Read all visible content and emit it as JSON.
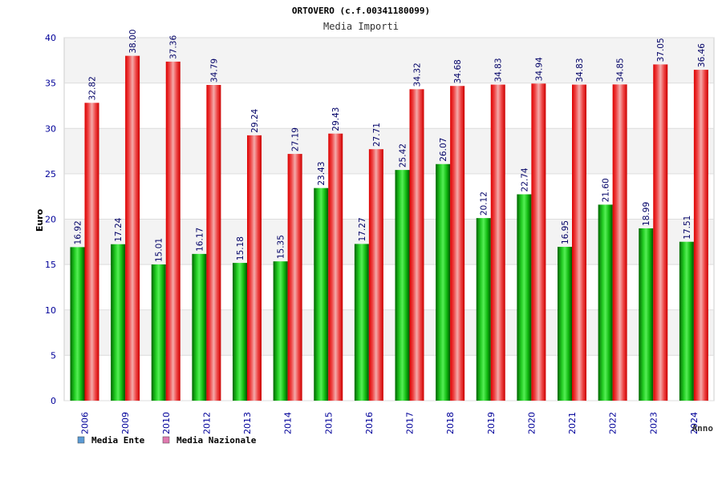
{
  "chart_data": {
    "type": "bar",
    "title": "ORTOVERO (c.f.00341180099)",
    "subtitle": "Media Importi",
    "xlabel": "Anno",
    "ylabel": "Euro",
    "ylim": [
      0,
      40
    ],
    "yticks": [
      0,
      5,
      10,
      15,
      20,
      25,
      30,
      35,
      40
    ],
    "categories": [
      "2006",
      "2009",
      "2010",
      "2012",
      "2013",
      "2014",
      "2015",
      "2016",
      "2017",
      "2018",
      "2019",
      "2020",
      "2021",
      "2022",
      "2023",
      "2024"
    ],
    "series": [
      {
        "name": "Media Ente",
        "color": "#00aa00",
        "values": [
          16.92,
          17.24,
          15.01,
          16.17,
          15.18,
          15.35,
          23.43,
          17.27,
          25.42,
          26.07,
          20.12,
          22.74,
          16.95,
          21.6,
          18.99,
          17.51
        ],
        "labels": [
          "16.92",
          "17.24",
          "15.01",
          "16.17",
          "15.18",
          "15.35",
          "23.43",
          "17.27",
          "25.42",
          "26.07",
          "20.12",
          "22.74",
          "16.95",
          "21.60",
          "18.99",
          "17.51"
        ]
      },
      {
        "name": "Media Nazionale",
        "color": "#ee1111",
        "values": [
          32.82,
          38.0,
          37.36,
          34.79,
          29.24,
          27.19,
          29.43,
          27.71,
          34.32,
          34.68,
          34.83,
          34.94,
          34.83,
          34.85,
          37.05,
          36.46
        ],
        "labels": [
          "32.82",
          "38.00",
          "37.36",
          "34.79",
          "29.24",
          "27.19",
          "29.43",
          "27.71",
          "34.32",
          "34.68",
          "34.83",
          "34.94",
          "34.83",
          "34.85",
          "37.05",
          "36.46"
        ]
      }
    ],
    "legend": {
      "placement": "bottom-left",
      "items": [
        {
          "label": "Media Ente",
          "color": "#5b9bd5"
        },
        {
          "label": "Media Nazionale",
          "color": "#e07ab0"
        }
      ]
    },
    "grid": true
  }
}
